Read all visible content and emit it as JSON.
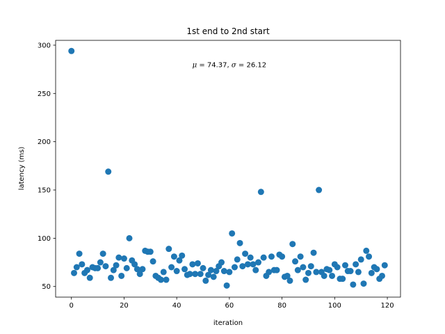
{
  "chart_data": {
    "type": "scatter",
    "title": "1st end to 2nd start",
    "xlabel": "iteration",
    "ylabel": "latency (ms)",
    "xlim": [
      -6,
      125
    ],
    "ylim": [
      39,
      305
    ],
    "xticks": [
      0,
      20,
      40,
      60,
      80,
      100,
      120
    ],
    "yticks": [
      50,
      100,
      150,
      200,
      250,
      300
    ],
    "grid": false,
    "annotation": {
      "mu_symbol": "μ",
      "mu_value": "74.37",
      "sigma_symbol": "σ",
      "sigma_value": "26.12",
      "x": 60,
      "y": 280
    },
    "series": [
      {
        "color": "#1f77b4",
        "x": [
          0,
          1,
          2,
          3,
          4,
          5,
          6,
          7,
          8,
          9,
          10,
          11,
          12,
          13,
          14,
          15,
          16,
          17,
          18,
          19,
          20,
          21,
          22,
          23,
          24,
          25,
          26,
          27,
          28,
          29,
          30,
          31,
          32,
          33,
          34,
          35,
          36,
          37,
          38,
          39,
          40,
          41,
          42,
          43,
          44,
          45,
          46,
          47,
          48,
          49,
          50,
          51,
          52,
          53,
          54,
          55,
          56,
          57,
          58,
          59,
          60,
          61,
          62,
          63,
          64,
          65,
          66,
          67,
          68,
          69,
          70,
          71,
          72,
          73,
          74,
          75,
          76,
          77,
          78,
          79,
          80,
          81,
          82,
          83,
          84,
          85,
          86,
          87,
          88,
          89,
          90,
          91,
          92,
          93,
          94,
          95,
          96,
          97,
          98,
          99,
          100,
          101,
          102,
          103,
          104,
          105,
          106,
          107,
          108,
          109,
          110,
          111,
          112,
          113,
          114,
          115,
          116,
          117,
          118,
          119
        ],
        "y": [
          294,
          64,
          70,
          84,
          73,
          64,
          67,
          59,
          70,
          69,
          69,
          75,
          84,
          71,
          169,
          59,
          67,
          72,
          80,
          61,
          79,
          69,
          100,
          77,
          73,
          68,
          63,
          68,
          87,
          86,
          86,
          76,
          61,
          59,
          57,
          65,
          57,
          89,
          70,
          81,
          66,
          77,
          82,
          68,
          62,
          63,
          73,
          63,
          74,
          63,
          69,
          56,
          62,
          67,
          60,
          66,
          71,
          75,
          66,
          51,
          65,
          105,
          70,
          78,
          95,
          71,
          84,
          73,
          80,
          73,
          67,
          75,
          148,
          80,
          61,
          65,
          81,
          67,
          67,
          83,
          81,
          60,
          61,
          56,
          94,
          76,
          67,
          81,
          70,
          57,
          64,
          71,
          85,
          65,
          150,
          65,
          61,
          68,
          67,
          61,
          73,
          70,
          58,
          58,
          72,
          66,
          66,
          52,
          73,
          65,
          78,
          53,
          87,
          81,
          64,
          70,
          68,
          58,
          61,
          72
        ]
      }
    ]
  }
}
